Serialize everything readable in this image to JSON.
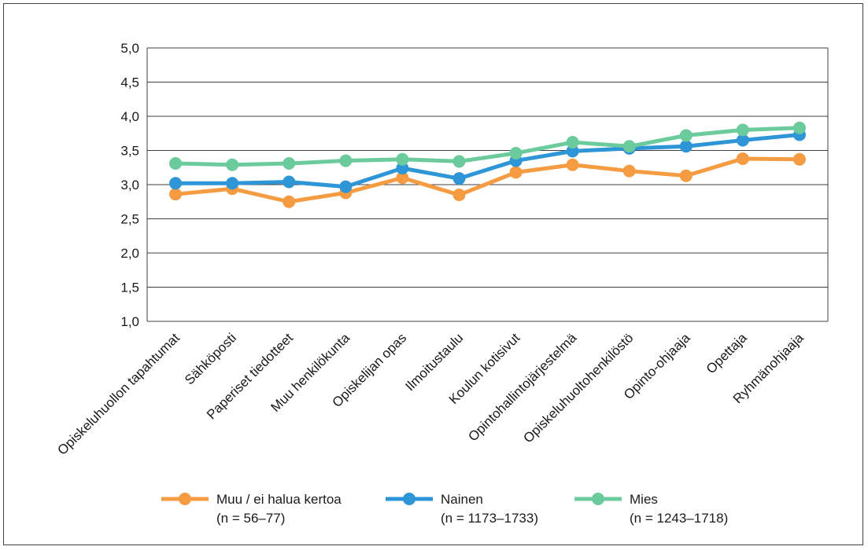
{
  "chart_data": {
    "type": "line",
    "title": "",
    "xlabel": "",
    "ylabel": "",
    "ylim": [
      1.0,
      5.0
    ],
    "yticks": [
      "1,0",
      "1,5",
      "2,0",
      "2,5",
      "3,0",
      "3,5",
      "4,0",
      "4,5",
      "5,0"
    ],
    "grid": true,
    "legend_position": "bottom",
    "categories": [
      "Opiskeluhuollon tapahtumat",
      "Sähköposti",
      "Paperiset tiedotteet",
      "Muu henkilökunta",
      "Opiskelijan opas",
      "Ilmoitustaulu",
      "Koulun kotisivut",
      "Opintohallintojärjestelmä",
      "Opiskeluhuoltohenkilöstö",
      "Opinto-ohjaaja",
      "Opettaja",
      "Ryhmänohjaaja"
    ],
    "series": [
      {
        "name": "Muu / ei halua kertoa",
        "sub": "(n = 56–77)",
        "color": "#f59c43",
        "values": [
          2.86,
          2.94,
          2.75,
          2.88,
          3.1,
          2.85,
          3.18,
          3.29,
          3.2,
          3.13,
          3.38,
          3.37
        ]
      },
      {
        "name": "Nainen",
        "sub": "(n = 1173–1733)",
        "color": "#2e95d6",
        "values": [
          3.02,
          3.02,
          3.04,
          2.97,
          3.24,
          3.09,
          3.35,
          3.49,
          3.53,
          3.56,
          3.65,
          3.73
        ]
      },
      {
        "name": "Mies",
        "sub": "(n = 1243–1718)",
        "color": "#6ccb9c",
        "values": [
          3.31,
          3.29,
          3.31,
          3.35,
          3.37,
          3.34,
          3.46,
          3.62,
          3.56,
          3.72,
          3.8,
          3.83
        ]
      }
    ]
  }
}
